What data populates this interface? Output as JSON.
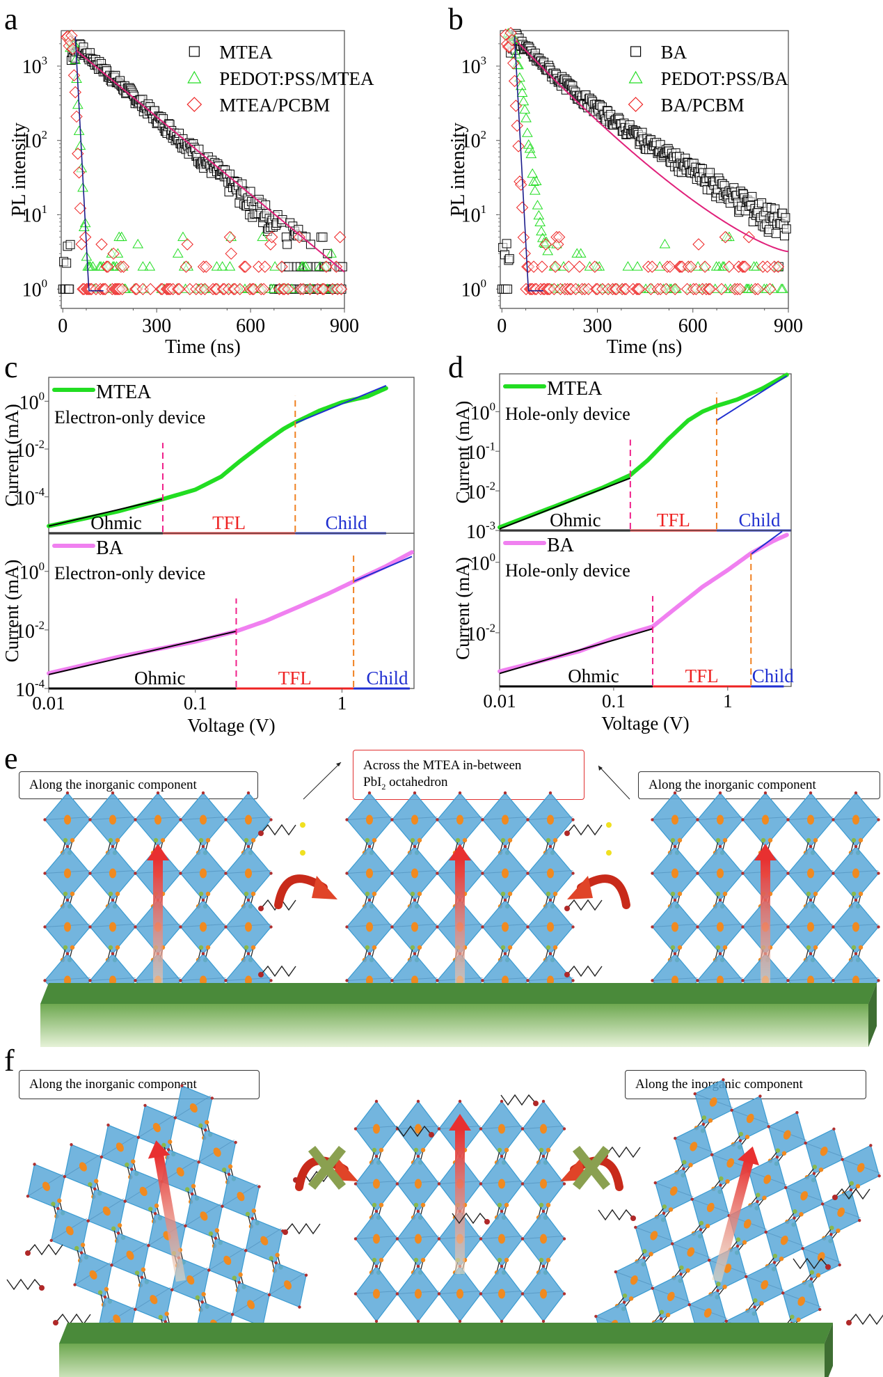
{
  "panel_letters": {
    "a": "a",
    "b": "b",
    "c": "c",
    "d": "d",
    "e": "e",
    "f": "f"
  },
  "colors": {
    "mtea_square": "#000000",
    "pedot": "#22dd22",
    "pcbm": "#ee2222",
    "fit_line": "#e0207a",
    "fit_fast": "#1a1a8a",
    "mtea_curve": "#22dd22",
    "ba_curve": "#f080f0",
    "ohmic": "#000000",
    "tfl": "#ee2222",
    "child": "#1f2fd0",
    "dash_pink": "#f0208a",
    "dash_orange": "#f08020",
    "octahedron": "#5aa8d8",
    "pb": "#f08a20",
    "substrate_top": "#4a8a3a",
    "substrate_bottom": "#e6f2d8",
    "arrow": "#e83030",
    "cross": "#8aa050"
  },
  "chart_data": [
    {
      "id": "a",
      "type": "scatter",
      "yscale": "log",
      "title": "",
      "xlabel": "Time (ns)",
      "ylabel": "PL intensity",
      "xlim": [
        -5,
        900
      ],
      "ylim": [
        0.55,
        3000
      ],
      "xticks": [
        0,
        300,
        600,
        900
      ],
      "xtick_labels": [
        "0",
        "300",
        "600",
        "900"
      ],
      "yticks": [
        1,
        10,
        100,
        1000
      ],
      "ytick_labels": [
        "10",
        "10",
        "10",
        "10"
      ],
      "ytick_exps": [
        "0",
        "1",
        "2",
        "3"
      ],
      "legend": {
        "position": "top-right",
        "entries": [
          "MTEA",
          "PEDOT:PSS/MTEA",
          "MTEA/PCBM"
        ]
      },
      "series": [
        {
          "name": "MTEA",
          "marker": "square",
          "decay": "mono",
          "peak_t": 45,
          "peak": 1900,
          "tau": 115,
          "floor": 2
        },
        {
          "name": "PEDOT:PSS/MTEA",
          "marker": "triangle",
          "peak_t": 35,
          "peak": 2800,
          "tau": 6,
          "floor": 1
        },
        {
          "name": "MTEA/PCBM",
          "marker": "diamond",
          "peak_t": 30,
          "peak": 2900,
          "tau": 5,
          "floor": 1
        }
      ],
      "fit": {
        "name": "fit",
        "t_start": 45,
        "t_end": 900,
        "y_start": 1600,
        "y_end": 1.7
      }
    },
    {
      "id": "b",
      "type": "scatter",
      "yscale": "log",
      "title": "",
      "xlabel": "Time (ns)",
      "ylabel": "PL intensity",
      "xlim": [
        -5,
        900
      ],
      "ylim": [
        0.55,
        3000
      ],
      "xticks": [
        0,
        300,
        600,
        900
      ],
      "xtick_labels": [
        "0",
        "300",
        "600",
        "900"
      ],
      "yticks": [
        1,
        10,
        100,
        1000
      ],
      "ytick_labels": [
        "10",
        "10",
        "10",
        "10"
      ],
      "ytick_exps": [
        "0",
        "1",
        "2",
        "3"
      ],
      "legend": {
        "position": "top-right",
        "entries": [
          "BA",
          "PEDOT:PSS/BA",
          "BA/PCBM"
        ]
      },
      "series": [
        {
          "name": "BA",
          "marker": "square",
          "decay": "bi",
          "peak_t": 45,
          "peak": 2400,
          "tau": 150,
          "floor": 2
        },
        {
          "name": "PEDOT:PSS/BA",
          "marker": "triangle",
          "peak_t": 35,
          "peak": 2800,
          "tau": 15,
          "floor": 1
        },
        {
          "name": "BA/PCBM",
          "marker": "diamond",
          "peak_t": 30,
          "peak": 2900,
          "tau": 6,
          "floor": 1
        }
      ],
      "fit": {
        "name": "fit",
        "t_start": 45,
        "t_end": 900,
        "y_start": 2200,
        "y_end": 3.2
      }
    },
    {
      "id": "c",
      "type": "line",
      "xscale": "log",
      "yscale": "log",
      "xlabel": "Voltage (V)",
      "ylabel": "Current (mA)",
      "xlim": [
        0.01,
        3.1
      ],
      "xticks": [
        0.01,
        0.1,
        1
      ],
      "xtick_labels": [
        "0.01",
        "0.1",
        "1"
      ],
      "subplots": [
        {
          "name": "MTEA",
          "note": "Electron-only device",
          "ylim": [
            3e-06,
            10
          ],
          "yticks": [
            0.0001,
            0.01,
            1
          ],
          "ytick_labels": [
            "10",
            "10",
            "10"
          ],
          "ytick_exps": [
            "-4",
            "-2",
            "0"
          ],
          "curve": [
            [
              0.01,
              6e-06
            ],
            [
              0.03,
              2.5e-05
            ],
            [
              0.06,
              8e-05
            ],
            [
              0.1,
              0.0002
            ],
            [
              0.15,
              0.0007
            ],
            [
              0.2,
              0.003
            ],
            [
              0.3,
              0.02
            ],
            [
              0.4,
              0.07
            ],
            [
              0.48,
              0.13
            ],
            [
              0.7,
              0.4
            ],
            [
              1.0,
              0.9
            ],
            [
              1.5,
              1.6
            ],
            [
              2.0,
              3.5
            ]
          ],
          "ohmic_fit": [
            [
              0.01,
              6e-06
            ],
            [
              0.06,
              8e-05
            ]
          ],
          "child_fit": [
            [
              0.48,
              0.12
            ],
            [
              2.0,
              4.5
            ]
          ],
          "v_tfl": 0.06,
          "v_child": 0.48,
          "regions": [
            "Ohmic",
            "TFL",
            "Child"
          ],
          "region_end": 2.0
        },
        {
          "name": "BA",
          "note": "Electron-only device",
          "ylim": [
            0.0001,
            20
          ],
          "yticks": [
            0.0001,
            0.01,
            1
          ],
          "ytick_labels": [
            "10",
            "10",
            "10"
          ],
          "ytick_exps": [
            "-4",
            "-2",
            "0"
          ],
          "curve": [
            [
              0.01,
              0.00033
            ],
            [
              0.03,
              0.0012
            ],
            [
              0.1,
              0.004
            ],
            [
              0.19,
              0.009
            ],
            [
              0.3,
              0.02
            ],
            [
              0.5,
              0.06
            ],
            [
              0.8,
              0.17
            ],
            [
              1.2,
              0.45
            ],
            [
              2.0,
              1.5
            ],
            [
              3.0,
              4.5
            ]
          ],
          "ohmic_fit": [
            [
              0.01,
              0.0003
            ],
            [
              0.19,
              0.009
            ]
          ],
          "child_fit": [
            [
              1.2,
              0.45
            ],
            [
              3.0,
              3.2
            ]
          ],
          "v_tfl": 0.19,
          "v_child": 1.2,
          "regions": [
            "Ohmic",
            "TFL",
            "Child"
          ],
          "region_end": 2.9
        }
      ]
    },
    {
      "id": "d",
      "type": "line",
      "xscale": "log",
      "yscale": "log",
      "xlabel": "Voltage (V)",
      "ylabel": "Current (mA)",
      "xlim": [
        0.01,
        3.6
      ],
      "xticks": [
        0.01,
        0.1,
        1
      ],
      "xtick_labels": [
        "0.01",
        "0.1",
        "1"
      ],
      "subplots": [
        {
          "name": "MTEA",
          "note": "Hole-only device",
          "ylim": [
            0.001,
            9
          ],
          "yticks": [
            0.001,
            0.01,
            0.1,
            1
          ],
          "ytick_labels": [
            "10",
            "10",
            "10",
            "10"
          ],
          "ytick_exps": [
            "-3",
            "-2",
            "-1",
            "0"
          ],
          "curve": [
            [
              0.01,
              0.0012
            ],
            [
              0.03,
              0.004
            ],
            [
              0.08,
              0.012
            ],
            [
              0.14,
              0.025
            ],
            [
              0.2,
              0.06
            ],
            [
              0.3,
              0.2
            ],
            [
              0.45,
              0.6
            ],
            [
              0.6,
              1.0
            ],
            [
              0.8,
              1.4
            ],
            [
              1.2,
              2.0
            ],
            [
              2.0,
              3.8
            ],
            [
              3.3,
              8.5
            ]
          ],
          "ohmic_fit": [
            [
              0.01,
              0.0011
            ],
            [
              0.14,
              0.021
            ]
          ],
          "child_fit": [
            [
              0.8,
              0.6
            ],
            [
              3.3,
              8
            ]
          ],
          "v_tfl": 0.14,
          "v_child": 0.8,
          "regions": [
            "Ohmic",
            "TFL",
            "Child"
          ],
          "region_end": 3.6
        },
        {
          "name": "BA",
          "note": "Hole-only device",
          "ylim": [
            0.0003,
            8
          ],
          "yticks": [
            0.01,
            1
          ],
          "ytick_labels": [
            "10",
            "10"
          ],
          "ytick_exps": [
            "-2",
            "0"
          ],
          "curve": [
            [
              0.01,
              0.0008
            ],
            [
              0.05,
              0.003
            ],
            [
              0.1,
              0.007
            ],
            [
              0.22,
              0.015
            ],
            [
              0.35,
              0.05
            ],
            [
              0.6,
              0.2
            ],
            [
              1.0,
              0.6
            ],
            [
              1.6,
              1.8
            ],
            [
              2.5,
              4
            ],
            [
              3.3,
              6
            ]
          ],
          "ohmic_fit": [
            [
              0.01,
              0.0007
            ],
            [
              0.22,
              0.013
            ]
          ],
          "child_fit": [
            [
              1.6,
              1.7
            ],
            [
              3.0,
              7.5
            ]
          ],
          "v_tfl": 0.22,
          "v_child": 1.6,
          "regions": [
            "Ohmic",
            "TFL",
            "Child"
          ],
          "region_end": 3.1
        }
      ]
    }
  ],
  "diagram_e": {
    "labels": {
      "left": "Along the inorganic component",
      "center_line1": "Across the MTEA in-between",
      "center_line2_main": "PbI",
      "center_line2_sub": "2",
      "center_line2_rest": " octahedron",
      "right": "Along the inorganic component"
    },
    "blocks": 3,
    "transfer": "allowed"
  },
  "diagram_f": {
    "labels": {
      "left": "Along the inorganic component",
      "right": "Along the inorganic component"
    },
    "blocks": 3,
    "transfer": "blocked"
  }
}
